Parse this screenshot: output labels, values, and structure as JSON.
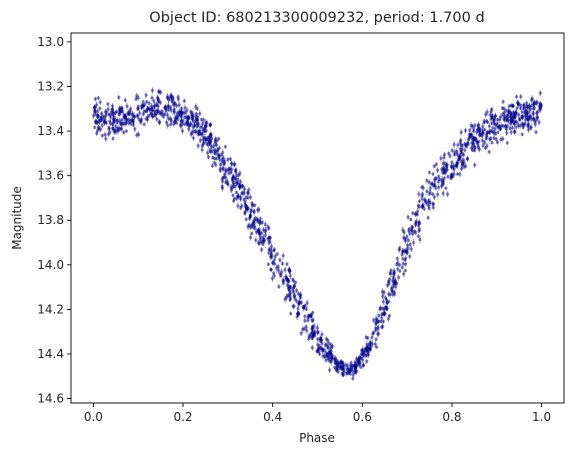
{
  "chart_data": {
    "type": "scatter",
    "title": "Object ID: 680213300009232, period: 1.700 d",
    "xlabel": "Phase",
    "ylabel": "Magnitude",
    "xlim": [
      -0.05,
      1.05
    ],
    "ylim": [
      14.62,
      12.96
    ],
    "y_inverted": true,
    "grid": false,
    "xticks": [
      0.0,
      0.2,
      0.4,
      0.6,
      0.8,
      1.0
    ],
    "xtick_labels": [
      "0.0",
      "0.2",
      "0.4",
      "0.6",
      "0.8",
      "1.0"
    ],
    "yticks": [
      13.0,
      13.2,
      13.4,
      13.6,
      13.8,
      14.0,
      14.2,
      14.4,
      14.6
    ],
    "ytick_labels": [
      "13.0",
      "13.2",
      "13.4",
      "13.6",
      "13.8",
      "14.0",
      "14.2",
      "14.4",
      "14.6"
    ],
    "marker_color": "#00008b",
    "error_bar_color": "#00008b",
    "light_curve_profile": {
      "phase": [
        0.0,
        0.05,
        0.1,
        0.15,
        0.2,
        0.25,
        0.3,
        0.35,
        0.4,
        0.45,
        0.5,
        0.55,
        0.58,
        0.62,
        0.65,
        0.7,
        0.75,
        0.8,
        0.85,
        0.9,
        0.95,
        1.0
      ],
      "magnitude": [
        13.33,
        13.35,
        13.33,
        13.28,
        13.32,
        13.42,
        13.58,
        13.76,
        13.96,
        14.14,
        14.34,
        14.46,
        14.47,
        14.36,
        14.18,
        13.9,
        13.68,
        13.56,
        13.44,
        13.37,
        13.33,
        13.3
      ],
      "scatter_width_mag": [
        0.11,
        0.12,
        0.12,
        0.11,
        0.11,
        0.11,
        0.13,
        0.14,
        0.15,
        0.14,
        0.11,
        0.05,
        0.05,
        0.09,
        0.14,
        0.15,
        0.14,
        0.13,
        0.12,
        0.12,
        0.12,
        0.12
      ]
    },
    "n_points": 1500
  }
}
